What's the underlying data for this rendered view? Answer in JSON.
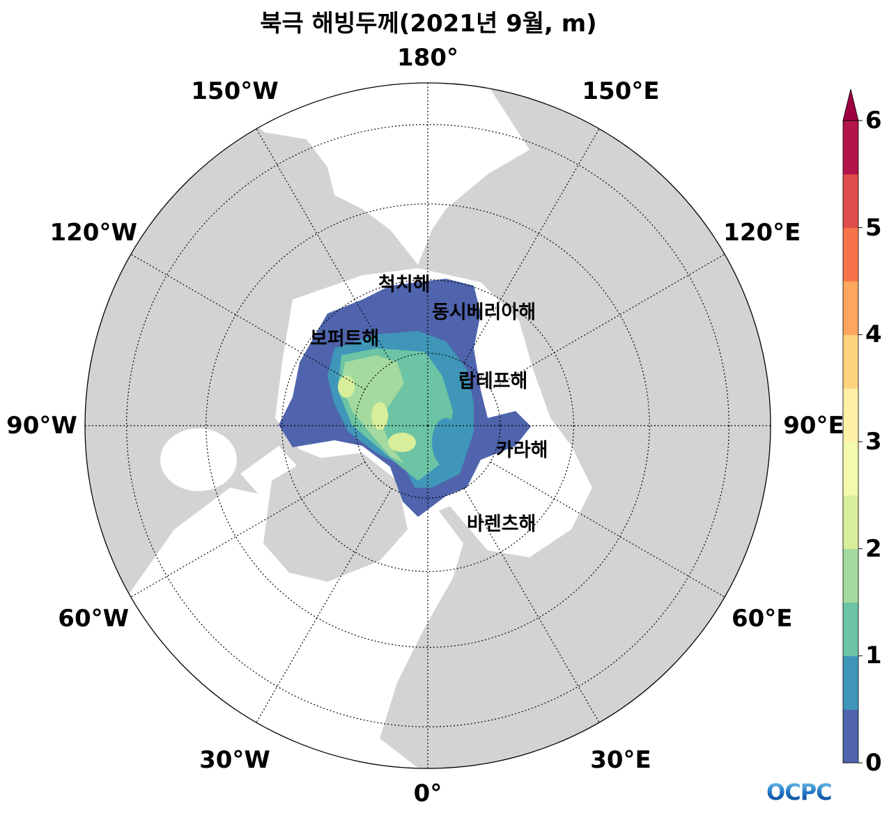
{
  "title": "북극 해빙두께(2021년 9월, m)",
  "longitude_labels": [
    {
      "text": "180°",
      "lon": 180
    },
    {
      "text": "150°E",
      "lon": 150
    },
    {
      "text": "120°E",
      "lon": 120
    },
    {
      "text": "90°E",
      "lon": 90
    },
    {
      "text": "60°E",
      "lon": 60
    },
    {
      "text": "30°E",
      "lon": 30
    },
    {
      "text": "0°",
      "lon": 0
    },
    {
      "text": "30°W",
      "lon": -30
    },
    {
      "text": "60°W",
      "lon": -60
    },
    {
      "text": "90°W",
      "lon": -90
    },
    {
      "text": "120°W",
      "lon": -120
    },
    {
      "text": "150°W",
      "lon": -150
    }
  ],
  "latitude_circles": [
    80,
    70,
    60,
    50
  ],
  "map_boundary_latitude": 45,
  "projection": "north polar stereographic",
  "sea_labels": [
    "척치해",
    "동시베리아해",
    "보퍼트해",
    "랍테프해",
    "카라해",
    "바렌츠해"
  ],
  "colorbar": {
    "min": 0,
    "max": 6,
    "step": 0.5,
    "extend": "max",
    "tick_labels": [
      "0",
      "1",
      "2",
      "3",
      "4",
      "5",
      "6"
    ],
    "level_colors": [
      "#4f64ad",
      "#3f96b8",
      "#6cc4a4",
      "#a4da9f",
      "#d8ee9b",
      "#f4faab",
      "#fff0a6",
      "#fed380",
      "#fda65e",
      "#f7744a",
      "#de4c4b",
      "#b3154b"
    ],
    "extend_color": "#9e0142"
  },
  "colors": {
    "land": "#d3d3d3",
    "ocean": "#ffffff",
    "grid": "#000000"
  },
  "logo": "OCPC"
}
